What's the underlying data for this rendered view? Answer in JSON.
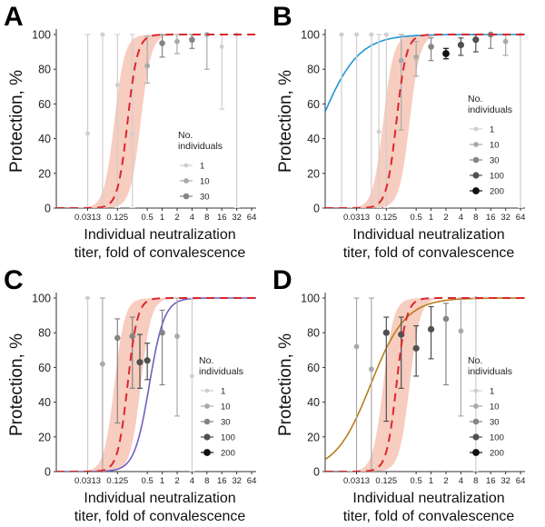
{
  "chart_data": [
    {
      "panel_label": "A",
      "type": "scatter",
      "ylabel": "Protection, %",
      "xlabel_lines": [
        "Individual neutralization",
        "titer, fold of convalescence"
      ],
      "x_scale": "log2",
      "x_ticks": [
        "0.0313",
        "0.125",
        "0.5",
        "1",
        "2",
        "4",
        "8",
        "16",
        "32",
        "64"
      ],
      "y_ticks": [
        "0",
        "20",
        "40",
        "60",
        "80",
        "100"
      ],
      "ylim": [
        0,
        100
      ],
      "legend_title": [
        "No.",
        "individuals"
      ],
      "legend_entries": [
        "1",
        "10",
        "30"
      ],
      "model_fit": {
        "type": "logistic",
        "midpoint_titer": 0.2,
        "slope": 3.0,
        "style": "dashed",
        "color": "#d9282f",
        "band_color": "#f6c4b5"
      },
      "points": [
        {
          "x": 0.0313,
          "y": 43,
          "lo": 0,
          "hi": 100,
          "weight": 1
        },
        {
          "x": 0.0625,
          "y": 100,
          "lo": 0,
          "hi": 100,
          "weight": 1
        },
        {
          "x": 0.125,
          "y": 71,
          "lo": 0,
          "hi": 100,
          "weight": 1
        },
        {
          "x": 0.25,
          "y": 43,
          "lo": 0,
          "hi": 100,
          "weight": 1
        },
        {
          "x": 0.5,
          "y": 82,
          "lo": 72,
          "hi": 99,
          "weight": 10
        },
        {
          "x": 1,
          "y": 95,
          "lo": 87,
          "hi": 100,
          "weight": 30
        },
        {
          "x": 2,
          "y": 96,
          "lo": 89,
          "hi": 100,
          "weight": 10
        },
        {
          "x": 4,
          "y": 97,
          "lo": 92,
          "hi": 100,
          "weight": 30
        },
        {
          "x": 8,
          "y": 100,
          "lo": 80,
          "hi": 100,
          "weight": 10
        },
        {
          "x": 16,
          "y": 93,
          "lo": 57,
          "hi": 100,
          "weight": 1
        },
        {
          "x": 32,
          "y": 100,
          "lo": 0,
          "hi": 100,
          "weight": 1
        }
      ]
    },
    {
      "panel_label": "B",
      "type": "scatter",
      "ylabel": "Protection, %",
      "xlabel_lines": [
        "Individual neutralization",
        "titer, fold of convalescence"
      ],
      "x_scale": "log2",
      "x_ticks": [
        "0.0313",
        "0.125",
        "0.5",
        "1",
        "2",
        "4",
        "8",
        "16",
        "32",
        "64"
      ],
      "y_ticks": [
        "0",
        "20",
        "40",
        "60",
        "80",
        "100"
      ],
      "ylim": [
        0,
        100
      ],
      "legend_title": [
        "No.",
        "individuals"
      ],
      "legend_entries": [
        "1",
        "10",
        "30",
        "100",
        "200"
      ],
      "model_fit": {
        "type": "logistic",
        "midpoint_titer": 0.2,
        "slope": 3.0,
        "style": "dashed",
        "color": "#d9282f",
        "band_color": "#f6c4b5"
      },
      "comparison_fit": {
        "color": "#1f97d4",
        "midpoint_titer": 0.006,
        "slope": 0.8
      },
      "points": [
        {
          "x": 0.0156,
          "y": 100,
          "lo": 0,
          "hi": 100,
          "weight": 1
        },
        {
          "x": 0.0313,
          "y": 100,
          "lo": 0,
          "hi": 100,
          "weight": 1
        },
        {
          "x": 0.0625,
          "y": 100,
          "lo": 0,
          "hi": 100,
          "weight": 1
        },
        {
          "x": 0.0884,
          "y": 44,
          "lo": 0,
          "hi": 100,
          "weight": 1
        },
        {
          "x": 0.125,
          "y": 100,
          "lo": 0,
          "hi": 100,
          "weight": 1
        },
        {
          "x": 0.25,
          "y": 85,
          "lo": 45,
          "hi": 100,
          "weight": 10
        },
        {
          "x": 0.5,
          "y": 87,
          "lo": 76,
          "hi": 96,
          "weight": 10
        },
        {
          "x": 1,
          "y": 93,
          "lo": 85,
          "hi": 98,
          "weight": 30
        },
        {
          "x": 2,
          "y": 89,
          "lo": 86,
          "hi": 92,
          "weight": 200
        },
        {
          "x": 4,
          "y": 94,
          "lo": 88,
          "hi": 98,
          "weight": 100
        },
        {
          "x": 8,
          "y": 97,
          "lo": 90,
          "hi": 100,
          "weight": 100
        },
        {
          "x": 16,
          "y": 100,
          "lo": 92,
          "hi": 100,
          "weight": 30
        },
        {
          "x": 32,
          "y": 96,
          "lo": 88,
          "hi": 100,
          "weight": 10
        },
        {
          "x": 64,
          "y": 100,
          "lo": 0,
          "hi": 100,
          "weight": 1
        }
      ]
    },
    {
      "panel_label": "C",
      "type": "scatter",
      "ylabel": "Protection, %",
      "xlabel_lines": [
        "Individual neutralization",
        "titer, fold of convalescence"
      ],
      "x_scale": "log2",
      "x_ticks": [
        "0.0313",
        "0.125",
        "0.5",
        "1",
        "2",
        "4",
        "8",
        "16",
        "32",
        "64"
      ],
      "y_ticks": [
        "0",
        "20",
        "40",
        "60",
        "80",
        "100"
      ],
      "ylim": [
        0,
        100
      ],
      "legend_title": [
        "No.",
        "individuals"
      ],
      "legend_entries": [
        "1",
        "10",
        "30",
        "100",
        "200"
      ],
      "model_fit": {
        "type": "logistic",
        "midpoint_titer": 0.2,
        "slope": 3.0,
        "style": "dashed",
        "color": "#d9282f",
        "band_color": "#f6c4b5"
      },
      "comparison_fit": {
        "color": "#7060c0",
        "midpoint_titer": 0.55,
        "slope": 2.0
      },
      "points": [
        {
          "x": 0.0313,
          "y": 100,
          "lo": 0,
          "hi": 100,
          "weight": 1
        },
        {
          "x": 0.0625,
          "y": 62,
          "lo": 0,
          "hi": 100,
          "weight": 10
        },
        {
          "x": 0.125,
          "y": 77,
          "lo": 28,
          "hi": 88,
          "weight": 30
        },
        {
          "x": 0.25,
          "y": 78,
          "lo": 48,
          "hi": 89,
          "weight": 30
        },
        {
          "x": 0.354,
          "y": 63,
          "lo": 48,
          "hi": 79,
          "weight": 100
        },
        {
          "x": 0.5,
          "y": 64,
          "lo": 53,
          "hi": 74,
          "weight": 100
        },
        {
          "x": 1,
          "y": 80,
          "lo": 50,
          "hi": 93,
          "weight": 30
        },
        {
          "x": 2,
          "y": 78,
          "lo": 32,
          "hi": 100,
          "weight": 10
        },
        {
          "x": 4,
          "y": 55,
          "lo": 0,
          "hi": 100,
          "weight": 1
        }
      ]
    },
    {
      "panel_label": "D",
      "type": "scatter",
      "ylabel": "Protection, %",
      "xlabel_lines": [
        "Individual neutralization",
        "titer, fold of convalescence"
      ],
      "x_scale": "log2",
      "x_ticks": [
        "0.0313",
        "0.125",
        "0.5",
        "1",
        "2",
        "4",
        "8",
        "16",
        "32",
        "64"
      ],
      "y_ticks": [
        "0",
        "20",
        "40",
        "60",
        "80",
        "100"
      ],
      "ylim": [
        0,
        100
      ],
      "legend_title": [
        "No.",
        "individuals"
      ],
      "legend_entries": [
        "1",
        "10",
        "30",
        "100",
        "200"
      ],
      "model_fit": {
        "type": "logistic",
        "midpoint_titer": 0.2,
        "slope": 3.0,
        "style": "dashed",
        "color": "#d9282f",
        "band_color": "#f6c4b5"
      },
      "comparison_fit": {
        "color": "#b87d1a",
        "midpoint_titer": 0.06,
        "slope": 0.85
      },
      "points": [
        {
          "x": 0.0313,
          "y": 72,
          "lo": 0,
          "hi": 100,
          "weight": 10
        },
        {
          "x": 0.0625,
          "y": 59,
          "lo": 0,
          "hi": 100,
          "weight": 10
        },
        {
          "x": 0.125,
          "y": 80,
          "lo": 29,
          "hi": 89,
          "weight": 100
        },
        {
          "x": 0.25,
          "y": 79,
          "lo": 48,
          "hi": 89,
          "weight": 100
        },
        {
          "x": 0.5,
          "y": 71,
          "lo": 55,
          "hi": 84,
          "weight": 100
        },
        {
          "x": 1,
          "y": 82,
          "lo": 65,
          "hi": 95,
          "weight": 100
        },
        {
          "x": 2,
          "y": 88,
          "lo": 50,
          "hi": 97,
          "weight": 30
        },
        {
          "x": 4,
          "y": 81,
          "lo": 32,
          "hi": 100,
          "weight": 10
        },
        {
          "x": 8,
          "y": 100,
          "lo": 0,
          "hi": 100,
          "weight": 1
        }
      ]
    }
  ]
}
